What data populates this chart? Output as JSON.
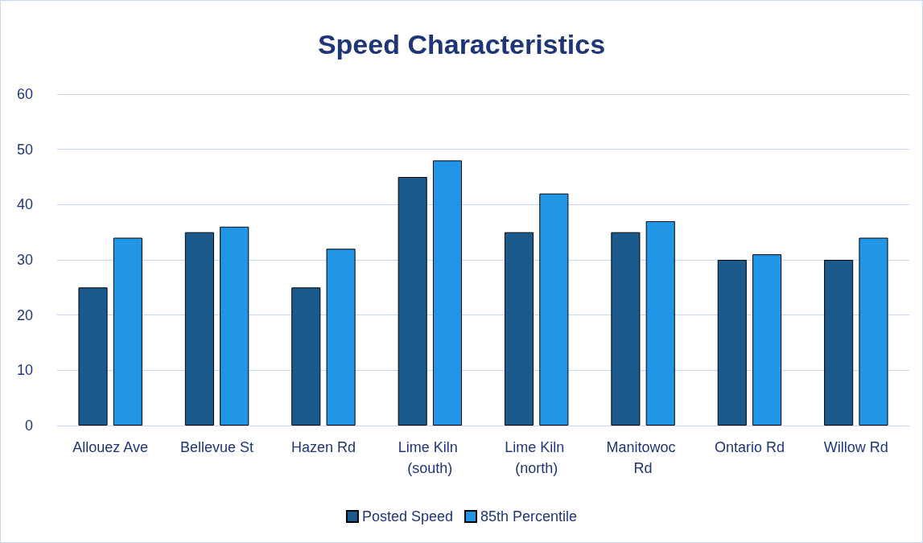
{
  "chart_data": {
    "type": "bar",
    "title": "Speed Characteristics",
    "categories": [
      "Allouez Ave",
      "Bellevue St",
      "Hazen Rd",
      "Lime Kiln (south)",
      "Lime Kiln (north)",
      "Manitowoc Rd",
      "Ontario Rd",
      "Willow Rd"
    ],
    "series": [
      {
        "name": "Posted Speed",
        "color": "#1b5a8c",
        "values": [
          25,
          35,
          25,
          45,
          35,
          35,
          30,
          30
        ]
      },
      {
        "name": "85th Percentile",
        "color": "#2196e6",
        "values": [
          34,
          36,
          32,
          48,
          42,
          37,
          31,
          34
        ]
      }
    ],
    "ylim": [
      0,
      60
    ],
    "yticks": [
      0,
      10,
      20,
      30,
      40,
      50,
      60
    ],
    "grid": "y",
    "legend": "bottom"
  }
}
